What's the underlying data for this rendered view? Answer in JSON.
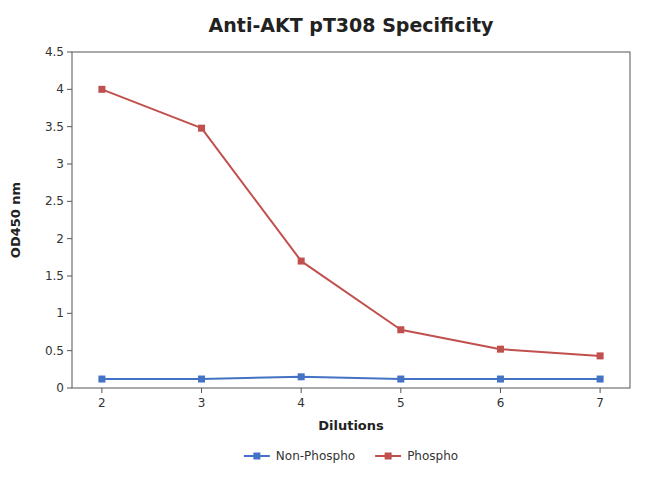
{
  "chart_data": {
    "type": "line",
    "title": "Anti-AKT pT308 Specificity",
    "xlabel": "Dilutions",
    "ylabel": "OD450 nm",
    "x": [
      2,
      3,
      4,
      5,
      6,
      7
    ],
    "series": [
      {
        "name": "Non-Phospho",
        "color": "#4472C4",
        "marker": "square",
        "values": [
          0.12,
          0.12,
          0.15,
          0.12,
          0.12,
          0.12
        ]
      },
      {
        "name": "Phospho",
        "color": "#C0504D",
        "marker": "square",
        "values": [
          4.0,
          3.48,
          1.7,
          0.78,
          0.52,
          0.43
        ]
      }
    ],
    "xlim": [
      1.7,
      7.3
    ],
    "xticks": [
      2,
      3,
      4,
      5,
      6,
      7
    ],
    "ylim": [
      0,
      4.5
    ],
    "yticks": [
      0,
      0.5,
      1,
      1.5,
      2,
      2.5,
      3,
      3.5,
      4,
      4.5
    ],
    "grid": false,
    "legend": "bottom"
  }
}
